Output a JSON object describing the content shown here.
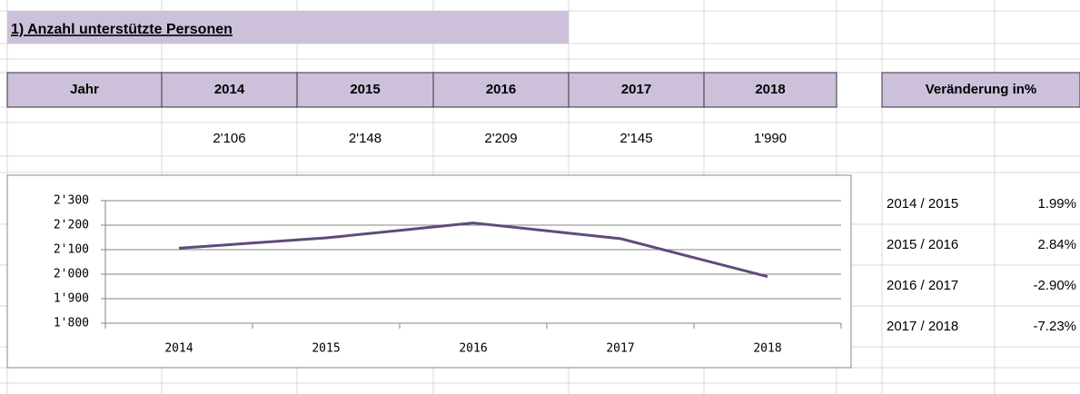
{
  "title": "1)  Anzahl unterstützte Personen",
  "table": {
    "header": [
      "Jahr",
      "2014",
      "2015",
      "2016",
      "2017",
      "2018"
    ],
    "values": [
      "2'106",
      "2'148",
      "2'209",
      "2'145",
      "1'990"
    ]
  },
  "change_table": {
    "header": "Veränderung in%",
    "rows": [
      [
        "2014 / 2015",
        "1.99%"
      ],
      [
        "2015 / 2016",
        "2.84%"
      ],
      [
        "2016 / 2017",
        "-2.90%"
      ],
      [
        "2017 / 2018",
        "-7.23%"
      ]
    ]
  },
  "chart_data": {
    "type": "line",
    "categories": [
      "2014",
      "2015",
      "2016",
      "2017",
      "2018"
    ],
    "series": [
      {
        "color": "#604a7b",
        "values": [
          2106,
          2148,
          2209,
          2145,
          1990
        ]
      }
    ],
    "ylim": [
      1800,
      2300
    ],
    "yticks": [
      {
        "value": 1800,
        "label": "1'800"
      },
      {
        "value": 1900,
        "label": "1'900"
      },
      {
        "value": 2000,
        "label": "2'000"
      },
      {
        "value": 2100,
        "label": "2'100"
      },
      {
        "value": 2200,
        "label": "2'200"
      },
      {
        "value": 2300,
        "label": "2'300"
      }
    ],
    "grid": true
  }
}
